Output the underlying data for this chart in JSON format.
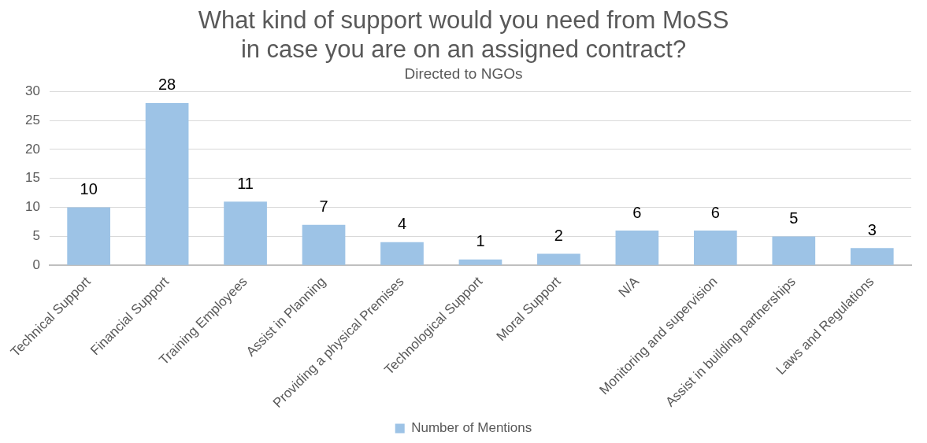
{
  "chart_data": {
    "type": "bar",
    "title": "What kind of support would you need from MoSS\nin case you are on an assigned contract?",
    "subtitle": "Directed to NGOs",
    "categories": [
      "Technical Support",
      "Financial Support",
      "Training Employees",
      "Assist in Planning",
      "Providing a physical Premises",
      "Technological Support",
      "Moral Support",
      "N/A",
      "Monitoring and supervision",
      "Assist in building partnerships",
      "Laws and Regulations"
    ],
    "series": [
      {
        "name": "Number of Mentions",
        "color": "#9dc3e6",
        "values": [
          10,
          28,
          11,
          7,
          4,
          1,
          2,
          6,
          6,
          5,
          3
        ]
      }
    ],
    "ylim": [
      0,
      30
    ],
    "yticks": [
      0,
      5,
      10,
      15,
      20,
      25,
      30
    ],
    "grid": "y",
    "legend": "bottom",
    "data_labels": true
  }
}
